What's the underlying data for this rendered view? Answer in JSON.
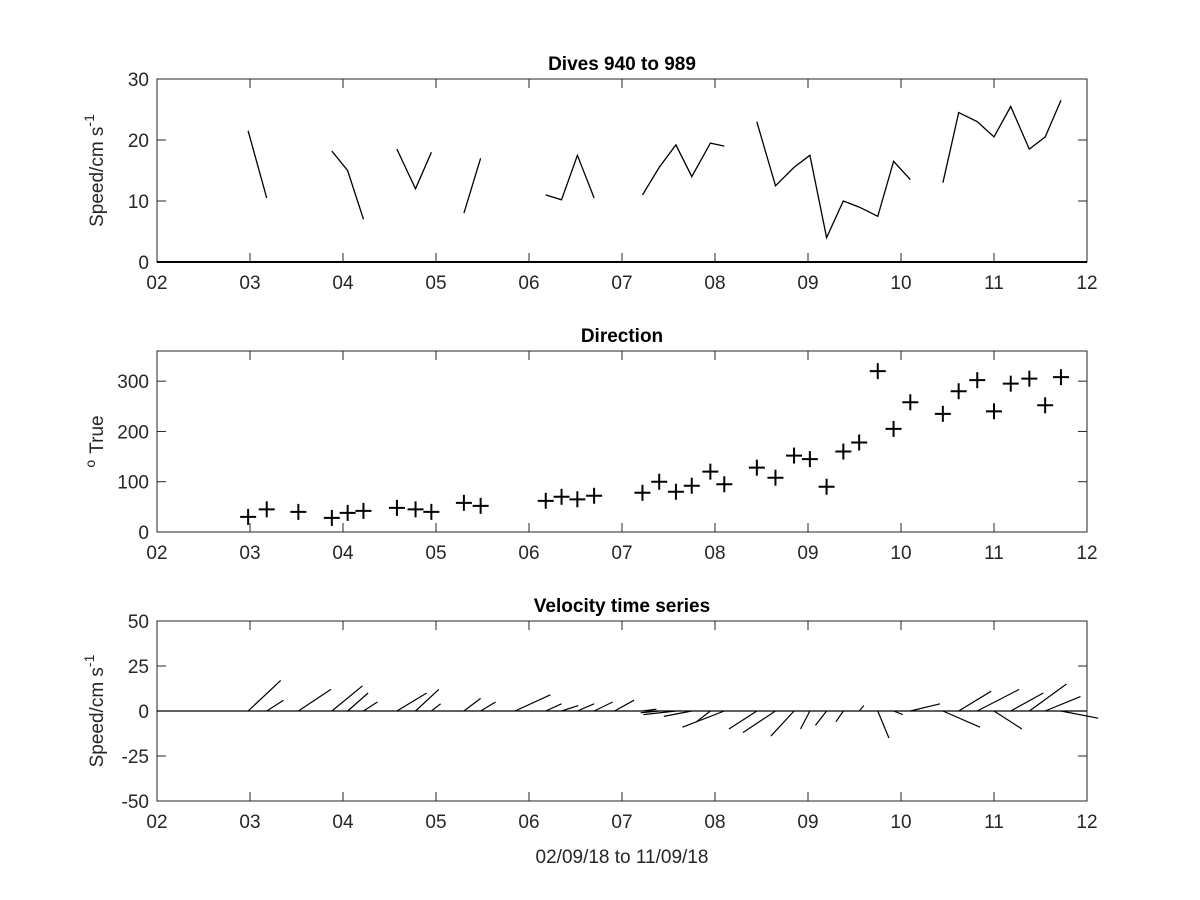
{
  "chart_data": [
    {
      "type": "line",
      "title": "Dives 940 to 989",
      "ylabel": "Speed/cm s",
      "ylabel_superscript": "-1",
      "xlim": [
        2,
        12
      ],
      "ylim": [
        0,
        30
      ],
      "xticks": [
        "02",
        "03",
        "04",
        "05",
        "06",
        "07",
        "08",
        "09",
        "10",
        "11",
        "12"
      ],
      "yticks": [
        "0",
        "10",
        "20",
        "30"
      ],
      "grid": false,
      "series": [
        {
          "x": [
            2.98,
            3.18
          ],
          "y": [
            21.5,
            10.5
          ]
        },
        {
          "x": [
            3.88,
            4.05,
            4.22
          ],
          "y": [
            18.2,
            15.0,
            7.0
          ]
        },
        {
          "x": [
            4.58,
            4.78,
            4.95
          ],
          "y": [
            18.5,
            12.0,
            18.0
          ]
        },
        {
          "x": [
            5.3,
            5.48
          ],
          "y": [
            8.0,
            17.0
          ]
        },
        {
          "x": [
            6.18,
            6.35,
            6.52,
            6.7
          ],
          "y": [
            11.0,
            10.2,
            17.5,
            10.5
          ]
        },
        {
          "x": [
            7.22,
            7.4,
            7.58,
            7.75,
            7.95,
            8.1
          ],
          "y": [
            11.0,
            15.5,
            19.2,
            14.0,
            19.5,
            19.0
          ]
        },
        {
          "x": [
            8.45,
            8.65,
            8.85,
            9.02,
            9.2,
            9.38,
            9.55,
            9.75,
            9.92,
            10.1
          ],
          "y": [
            23.0,
            12.5,
            15.5,
            17.5,
            4.0,
            10.0,
            9.0,
            7.5,
            16.5,
            13.5
          ]
        },
        {
          "x": [
            10.45,
            10.62,
            10.82,
            11.0,
            11.18,
            11.38,
            11.55,
            11.72
          ],
          "y": [
            13.0,
            24.5,
            23.0,
            20.5,
            25.5,
            18.5,
            20.5,
            26.5
          ]
        }
      ]
    },
    {
      "type": "scatter",
      "title": "Direction",
      "ylabel": "True",
      "ylabel_prefix_superscript": "o",
      "xlim": [
        2,
        12
      ],
      "ylim": [
        0,
        360
      ],
      "xticks": [
        "02",
        "03",
        "04",
        "05",
        "06",
        "07",
        "08",
        "09",
        "10",
        "11",
        "12"
      ],
      "yticks": [
        "0",
        "100",
        "200",
        "300"
      ],
      "grid": false,
      "marker": "+",
      "x": [
        2.98,
        3.18,
        3.52,
        3.88,
        4.05,
        4.22,
        4.58,
        4.78,
        4.95,
        5.3,
        5.48,
        6.18,
        6.35,
        6.52,
        6.7,
        7.22,
        7.4,
        7.58,
        7.75,
        7.95,
        8.1,
        8.45,
        8.65,
        8.85,
        9.02,
        9.2,
        9.38,
        9.55,
        9.75,
        9.92,
        10.1,
        10.45,
        10.62,
        10.82,
        11.0,
        11.18,
        11.38,
        11.55,
        11.72
      ],
      "y": [
        30,
        45,
        40,
        28,
        38,
        42,
        48,
        45,
        40,
        58,
        52,
        62,
        70,
        65,
        72,
        78,
        100,
        80,
        92,
        120,
        95,
        128,
        108,
        152,
        145,
        90,
        160,
        178,
        320,
        205,
        258,
        235,
        280,
        302,
        240,
        295,
        305,
        252,
        308
      ]
    },
    {
      "type": "line",
      "subtype": "stick",
      "title": "Velocity time series",
      "ylabel": "Speed/cm s",
      "ylabel_superscript": "-1",
      "xlabel": "02/09/18 to 11/09/18",
      "xlim": [
        2,
        12
      ],
      "ylim": [
        -50,
        50
      ],
      "xticks": [
        "02",
        "03",
        "04",
        "05",
        "06",
        "07",
        "08",
        "09",
        "10",
        "11",
        "12"
      ],
      "yticks": [
        "-50",
        "-25",
        "0",
        "25",
        "50"
      ],
      "grid": false,
      "zero_line": true,
      "sticks": {
        "x": [
          2.98,
          3.18,
          3.52,
          3.88,
          4.05,
          4.22,
          4.58,
          4.78,
          4.95,
          5.3,
          5.48,
          5.85,
          6.18,
          6.35,
          6.52,
          6.7,
          6.92,
          7.22,
          7.4,
          7.58,
          7.75,
          7.95,
          8.1,
          8.45,
          8.65,
          8.85,
          9.02,
          9.2,
          9.38,
          9.55,
          9.75,
          9.92,
          10.1,
          10.45,
          10.62,
          10.82,
          11.0,
          11.18,
          11.38,
          11.55,
          11.72
        ],
        "u": [
          0.35,
          0.18,
          0.35,
          0.33,
          0.22,
          0.15,
          0.32,
          0.25,
          0.1,
          0.18,
          0.16,
          0.38,
          0.17,
          0.18,
          0.18,
          0.2,
          0.21,
          0.15,
          -0.2,
          -0.35,
          -0.3,
          -0.15,
          -0.45,
          -0.3,
          -0.35,
          -0.25,
          -0.1,
          -0.12,
          -0.08,
          0.05,
          0.12,
          0.1,
          0.32,
          0.4,
          0.35,
          0.45,
          0.3,
          0.35,
          0.4,
          0.38,
          0.4
        ],
        "v": [
          17,
          6,
          12,
          14,
          10,
          5,
          10,
          12,
          4,
          7,
          5,
          9,
          4,
          3,
          4,
          5,
          6,
          1,
          -1,
          -2,
          -3,
          -6,
          -9,
          -10,
          -12,
          -14,
          -10,
          -8,
          -6,
          3,
          -15,
          -2,
          4,
          -9,
          11,
          12,
          -10,
          10,
          15,
          8,
          -4
        ]
      }
    }
  ]
}
